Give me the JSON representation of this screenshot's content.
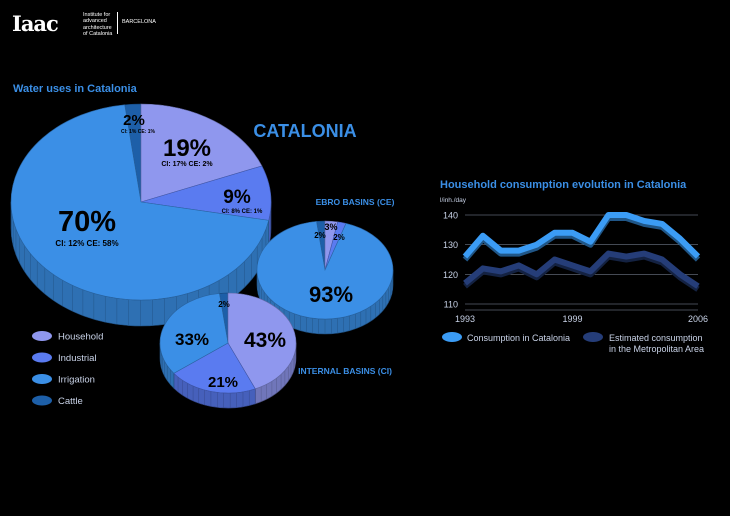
{
  "brand": {
    "logo": "Iaac",
    "lines": [
      "Institute for",
      "advanced",
      "architecture",
      "of Catalonia"
    ],
    "city": "BARCELONA"
  },
  "colors": {
    "household": "#8f97ee",
    "industrial": "#5a7bf0",
    "irrigation": "#3b8fe6",
    "cattle": "#1d5fa8",
    "consumption_line": "#3b9cf5",
    "metro_line": "#253d78",
    "title": "#3b8fe6"
  },
  "chart_data": [
    {
      "type": "pie",
      "title": "Water uses in Catalonia",
      "label": "CATALONIA",
      "slices": [
        {
          "name": "Household",
          "value": 19,
          "label": "19%",
          "sub": "CI: 17%  CE: 2%"
        },
        {
          "name": "Industrial",
          "value": 9,
          "label": "9%",
          "sub": "CI: 8%  CE: 1%"
        },
        {
          "name": "Irrigation",
          "value": 70,
          "label": "70%",
          "sub": "CI: 12%  CE: 58%"
        },
        {
          "name": "Cattle",
          "value": 2,
          "label": "2%",
          "sub": "CI: 1%  CE: 1%"
        }
      ],
      "legend": [
        "Household",
        "Industrial",
        "Irrigation",
        "Cattle"
      ]
    },
    {
      "type": "pie",
      "label": "EBRO BASINS (CE)",
      "slices": [
        {
          "name": "Household",
          "value": 3,
          "label": "3%"
        },
        {
          "name": "Industrial",
          "value": 2,
          "label": "2%"
        },
        {
          "name": "Irrigation",
          "value": 93,
          "label": "93%"
        },
        {
          "name": "Cattle",
          "value": 2,
          "label": "2%"
        }
      ]
    },
    {
      "type": "pie",
      "label": "INTERNAL BASINS (CI)",
      "slices": [
        {
          "name": "Household",
          "value": 43,
          "label": "43%"
        },
        {
          "name": "Industrial",
          "value": 21,
          "label": "21%"
        },
        {
          "name": "Irrigation",
          "value": 33,
          "label": "33%"
        },
        {
          "name": "Cattle",
          "value": 2,
          "label": "2%"
        }
      ]
    },
    {
      "type": "line",
      "title": "Household consumption evolution in Catalonia",
      "ylabel": "l/inh./day",
      "xlim": [
        1993,
        2006
      ],
      "ylim": [
        110,
        140
      ],
      "yticks": [
        110,
        120,
        130,
        140
      ],
      "xticks": [
        1993,
        1999,
        2006
      ],
      "series": [
        {
          "name": "Consumption in Catalonia",
          "x": [
            1993,
            1994,
            1995,
            1996,
            1997,
            1998,
            1999,
            2000,
            2001,
            2002,
            2003,
            2004,
            2005,
            2006
          ],
          "values": [
            126,
            133,
            128,
            128,
            130,
            134,
            134,
            131,
            140,
            140,
            138,
            137,
            132,
            126
          ]
        },
        {
          "name": "Estimated consumption\nin the Metropolitan Area",
          "x": [
            1993,
            1994,
            1995,
            1996,
            1997,
            1998,
            1999,
            2000,
            2001,
            2002,
            2003,
            2004,
            2005,
            2006
          ],
          "values": [
            117,
            122,
            121,
            123,
            120,
            125,
            123,
            121,
            127,
            126,
            127,
            125,
            120,
            116
          ]
        }
      ]
    }
  ]
}
